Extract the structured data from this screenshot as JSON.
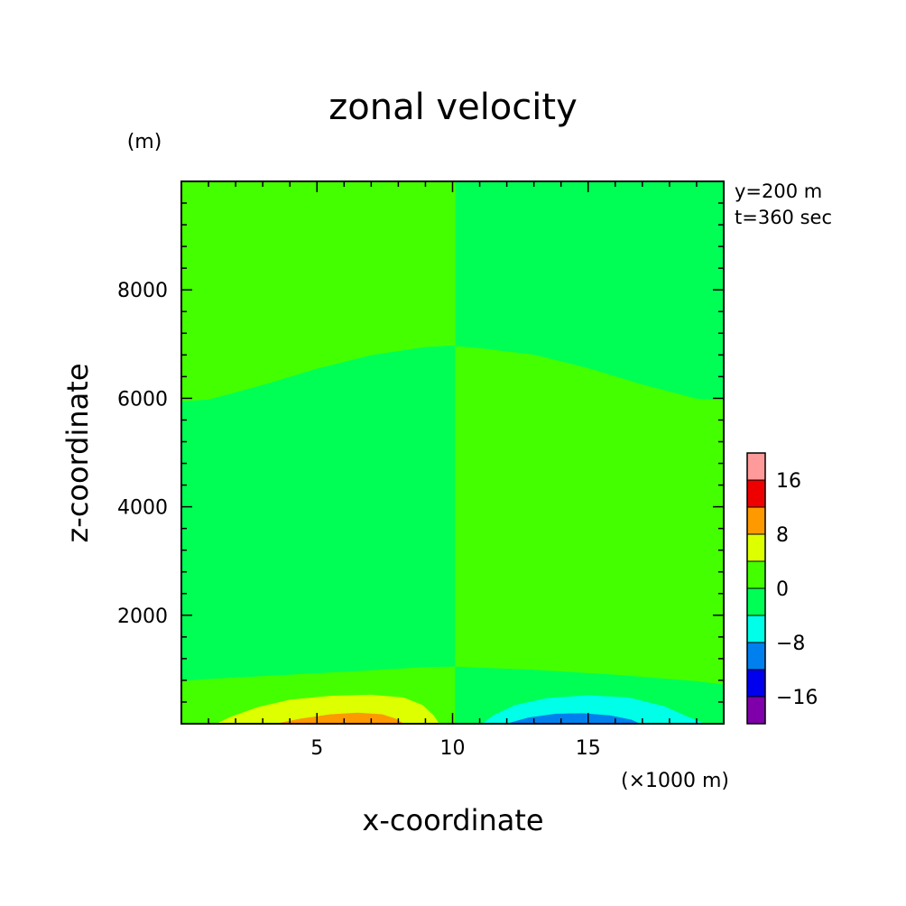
{
  "chart_data": {
    "type": "heatmap",
    "title": "zonal velocity",
    "xlabel": "x-coordinate",
    "ylabel": "z-coordinate",
    "x_unit": "(×1000 m)",
    "y_unit": "(m)",
    "xlim": [
      0,
      20
    ],
    "ylim": [
      0,
      10000
    ],
    "x_ticks": [
      "5",
      "10",
      "15"
    ],
    "x_tick_values": [
      5,
      10,
      15
    ],
    "y_ticks": [
      "2000",
      "4000",
      "6000",
      "8000"
    ],
    "y_tick_values": [
      2000,
      4000,
      6000,
      8000
    ],
    "annotations": [
      "y=200 m",
      "t=360 sec"
    ],
    "colorbar": {
      "levels": [
        {
          "min": -20,
          "max": -16,
          "color": "#7f00aa"
        },
        {
          "min": -16,
          "max": -12,
          "color": "#0000ee"
        },
        {
          "min": -12,
          "max": -8,
          "color": "#0080ee"
        },
        {
          "min": -8,
          "max": -4,
          "color": "#00ffe8"
        },
        {
          "min": -4,
          "max": 0,
          "color": "#00ff55"
        },
        {
          "min": 0,
          "max": 4,
          "color": "#44ff00"
        },
        {
          "min": 4,
          "max": 8,
          "color": "#ddff00"
        },
        {
          "min": 8,
          "max": 12,
          "color": "#ff9900"
        },
        {
          "min": 12,
          "max": 16,
          "color": "#ee0000"
        },
        {
          "min": 16,
          "max": 20,
          "color": "#ff9a9a"
        }
      ],
      "tick_labels": [
        "16",
        "8",
        "0",
        "−8",
        "−16"
      ],
      "tick_values": [
        16,
        8,
        0,
        -8,
        -16
      ]
    },
    "regions": [
      {
        "level": 0,
        "color": "#00ff55",
        "desc": "background",
        "points": [
          [
            0,
            0
          ],
          [
            20,
            0
          ],
          [
            20,
            10000
          ],
          [
            0,
            10000
          ]
        ]
      },
      {
        "level": 0,
        "color": "#44ff00",
        "desc": "upper-left",
        "points": [
          [
            0,
            5950
          ],
          [
            1,
            5980
          ],
          [
            3,
            6250
          ],
          [
            5,
            6550
          ],
          [
            7,
            6800
          ],
          [
            9,
            6950
          ],
          [
            10.1,
            6980
          ],
          [
            10.1,
            10000
          ],
          [
            0,
            10000
          ]
        ]
      },
      {
        "level": 0,
        "color": "#44ff00",
        "desc": "lower-right",
        "points": [
          [
            10.1,
            0
          ],
          [
            20,
            0
          ],
          [
            20,
            5960
          ],
          [
            19,
            5990
          ],
          [
            17,
            6250
          ],
          [
            15,
            6550
          ],
          [
            13,
            6800
          ],
          [
            11,
            6920
          ],
          [
            10.1,
            6960
          ]
        ]
      },
      {
        "level": 0,
        "color": "#44ff00",
        "desc": "near-surface-left",
        "points": [
          [
            0,
            0
          ],
          [
            10.1,
            0
          ],
          [
            10.1,
            1050
          ],
          [
            9,
            1040
          ],
          [
            7,
            980
          ],
          [
            4,
            900
          ],
          [
            1,
            820
          ],
          [
            0,
            780
          ]
        ]
      },
      {
        "level": -4,
        "color": "#00ff55",
        "desc": "near-surface-right",
        "points": [
          [
            10.1,
            0
          ],
          [
            20,
            0
          ],
          [
            20,
            720
          ],
          [
            19,
            780
          ],
          [
            16,
            900
          ],
          [
            13,
            990
          ],
          [
            11,
            1030
          ],
          [
            10.1,
            1050
          ]
        ]
      },
      {
        "level": 4,
        "color": "#ddff00",
        "desc": "positive-low-1",
        "points": [
          [
            1.3,
            0
          ],
          [
            1.8,
            120
          ],
          [
            2.8,
            300
          ],
          [
            4,
            440
          ],
          [
            5.5,
            510
          ],
          [
            7,
            530
          ],
          [
            8.2,
            480
          ],
          [
            8.9,
            340
          ],
          [
            9.3,
            150
          ],
          [
            9.5,
            0
          ]
        ]
      },
      {
        "level": 8,
        "color": "#ff9900",
        "desc": "positive-low-2",
        "points": [
          [
            3.5,
            0
          ],
          [
            4.4,
            90
          ],
          [
            5.5,
            170
          ],
          [
            6.5,
            200
          ],
          [
            7.4,
            170
          ],
          [
            7.9,
            90
          ],
          [
            8.2,
            0
          ]
        ]
      },
      {
        "level": -4,
        "color": "#00ffe8",
        "desc": "negative-low-1",
        "points": [
          [
            11.1,
            0
          ],
          [
            11.5,
            150
          ],
          [
            12.3,
            340
          ],
          [
            13.5,
            470
          ],
          [
            15,
            520
          ],
          [
            16.5,
            480
          ],
          [
            17.8,
            320
          ],
          [
            18.7,
            120
          ],
          [
            19.3,
            0
          ]
        ]
      },
      {
        "level": -8,
        "color": "#0080ee",
        "desc": "negative-low-2",
        "points": [
          [
            12.0,
            0
          ],
          [
            12.8,
            110
          ],
          [
            13.8,
            180
          ],
          [
            14.8,
            190
          ],
          [
            15.8,
            150
          ],
          [
            16.6,
            70
          ],
          [
            16.9,
            0
          ]
        ]
      }
    ]
  }
}
